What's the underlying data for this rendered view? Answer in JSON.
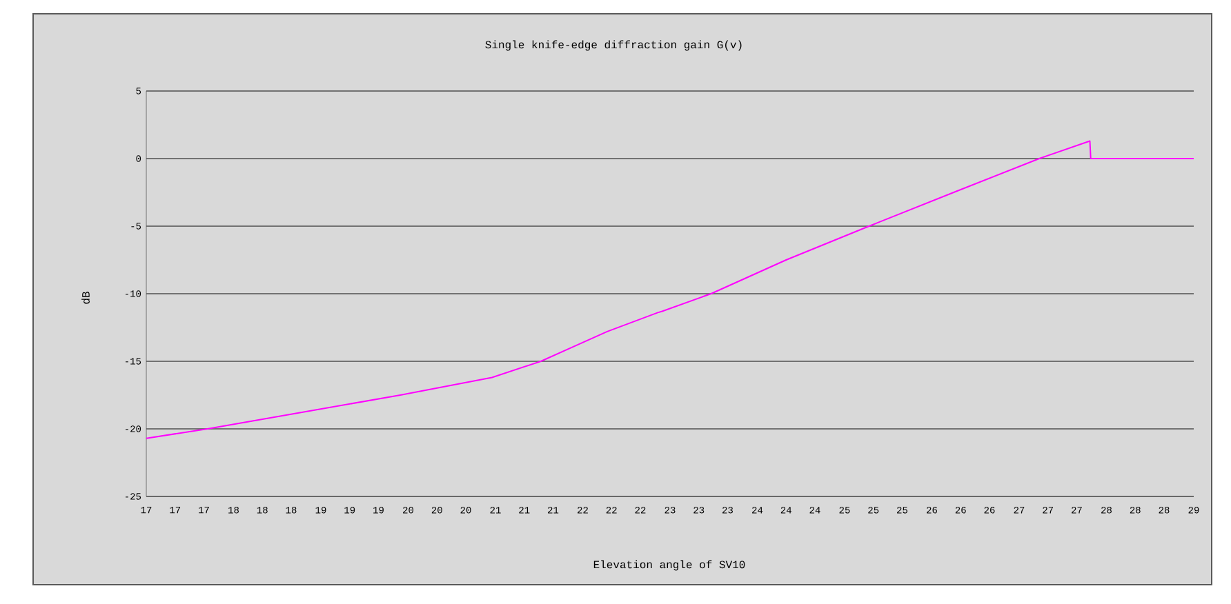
{
  "chart_data": {
    "type": "line",
    "title": "Single knife-edge diffraction gain G(v)",
    "xlabel": "Elevation angle of SV10",
    "ylabel": "dB",
    "xlim": [
      16.67,
      28.67
    ],
    "ylim": [
      -25,
      5
    ],
    "yticks": [
      -25,
      -20,
      -15,
      -10,
      -5,
      0,
      5
    ],
    "xticks": [
      {
        "value": 16.67,
        "label": "17"
      },
      {
        "value": 17,
        "label": "17"
      },
      {
        "value": 17.33,
        "label": "17"
      },
      {
        "value": 17.67,
        "label": "18"
      },
      {
        "value": 18,
        "label": "18"
      },
      {
        "value": 18.33,
        "label": "18"
      },
      {
        "value": 18.67,
        "label": "19"
      },
      {
        "value": 19,
        "label": "19"
      },
      {
        "value": 19.33,
        "label": "19"
      },
      {
        "value": 19.67,
        "label": "20"
      },
      {
        "value": 20,
        "label": "20"
      },
      {
        "value": 20.33,
        "label": "20"
      },
      {
        "value": 20.67,
        "label": "21"
      },
      {
        "value": 21,
        "label": "21"
      },
      {
        "value": 21.33,
        "label": "21"
      },
      {
        "value": 21.67,
        "label": "22"
      },
      {
        "value": 22,
        "label": "22"
      },
      {
        "value": 22.33,
        "label": "22"
      },
      {
        "value": 22.67,
        "label": "23"
      },
      {
        "value": 23,
        "label": "23"
      },
      {
        "value": 23.33,
        "label": "23"
      },
      {
        "value": 23.67,
        "label": "24"
      },
      {
        "value": 24,
        "label": "24"
      },
      {
        "value": 24.33,
        "label": "24"
      },
      {
        "value": 24.67,
        "label": "25"
      },
      {
        "value": 25,
        "label": "25"
      },
      {
        "value": 25.33,
        "label": "25"
      },
      {
        "value": 25.67,
        "label": "26"
      },
      {
        "value": 26,
        "label": "26"
      },
      {
        "value": 26.33,
        "label": "26"
      },
      {
        "value": 26.67,
        "label": "27"
      },
      {
        "value": 27,
        "label": "27"
      },
      {
        "value": 27.33,
        "label": "27"
      },
      {
        "value": 27.67,
        "label": "28"
      },
      {
        "value": 28,
        "label": "28"
      },
      {
        "value": 28.33,
        "label": "28"
      },
      {
        "value": 28.67,
        "label": "29"
      }
    ],
    "grid": "y",
    "marker": "none",
    "line_style": "solid",
    "series": [
      {
        "color": "#ff00ff",
        "x": [
          16.67,
          17.37,
          18.52,
          19.58,
          20.63,
          21.19,
          21.95,
          22.53,
          22.58,
          23.14,
          24.0,
          24.95,
          25.96,
          26.9,
          27.48,
          27.49,
          28.67
        ],
        "values": [
          -20.7,
          -20.0,
          -18.7,
          -17.5,
          -16.2,
          -15.0,
          -12.8,
          -11.4,
          -11.3,
          -10.0,
          -7.5,
          -5.0,
          -2.4,
          0.0,
          1.3,
          0.0,
          0.0
        ]
      }
    ]
  }
}
